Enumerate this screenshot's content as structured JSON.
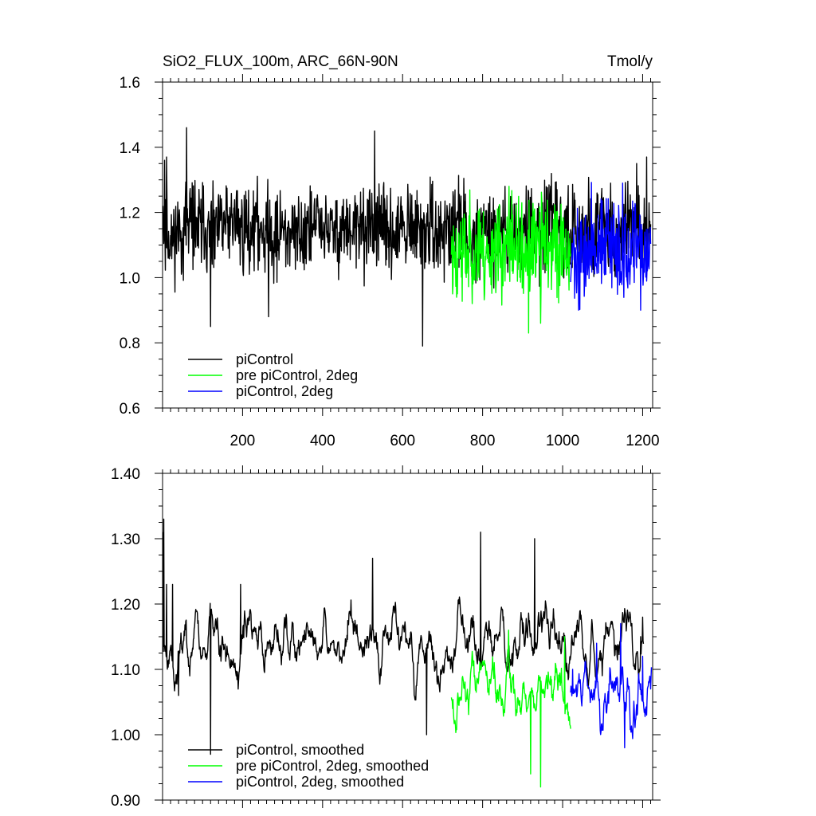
{
  "chart_data": [
    {
      "type": "line",
      "title": "SiO2_FLUX_100m, ARC_66N-90N",
      "units": "Tmol/y",
      "xlabel": "",
      "ylabel": "",
      "xlim": [
        0,
        1225
      ],
      "ylim": [
        0.6,
        1.6
      ],
      "x_ticks": [
        200,
        400,
        600,
        800,
        1000,
        1200
      ],
      "x_tick_labels": [
        "200",
        "400",
        "600",
        "800",
        "1000",
        "1200"
      ],
      "y_ticks": [
        0.6,
        0.8,
        1.0,
        1.2,
        1.4,
        1.6
      ],
      "y_tick_labels": [
        "0.6",
        "0.8",
        "1.0",
        "1.2",
        "1.4",
        "1.6"
      ],
      "legend_position": "bottom-left",
      "series": [
        {
          "name": "piControl",
          "color": "#000000",
          "x_start": 1,
          "x_end": 1220,
          "mean": 1.145,
          "amplitude": 0.075,
          "seed": 11,
          "anchors": [
            [
              1,
              1.22
            ],
            [
              5,
              1.36
            ],
            [
              10,
              1.37
            ],
            [
              60,
              1.46
            ],
            [
              120,
              0.85
            ],
            [
              265,
              0.88
            ],
            [
              530,
              1.45
            ],
            [
              650,
              0.79
            ],
            [
              1120,
              1.29
            ],
            [
              1185,
              1.35
            ],
            [
              1210,
              1.37
            ]
          ]
        },
        {
          "name": "pre piControl, 2deg",
          "color": "#00ff00",
          "x_start": 722,
          "x_end": 1020,
          "mean": 1.085,
          "amplitude": 0.085,
          "seed": 23,
          "anchors": [
            [
              725,
              0.95
            ],
            [
              915,
              0.83
            ],
            [
              945,
              0.86
            ],
            [
              866,
              1.28
            ]
          ]
        },
        {
          "name": "piControl, 2deg",
          "color": "#0000ff",
          "x_start": 1020,
          "x_end": 1220,
          "mean": 1.085,
          "amplitude": 0.08,
          "seed": 37,
          "anchors": [
            [
              1040,
              0.9
            ],
            [
              1150,
              1.29
            ],
            [
              1195,
              0.9
            ]
          ]
        }
      ]
    },
    {
      "type": "line",
      "title": "",
      "xlabel": "",
      "ylabel": "",
      "xlim": [
        0,
        1225
      ],
      "ylim": [
        0.9,
        1.4
      ],
      "x_ticks": [
        200,
        400,
        600,
        800,
        1000,
        1200
      ],
      "y_ticks": [
        0.9,
        1.0,
        1.1,
        1.2,
        1.3,
        1.4
      ],
      "y_tick_labels": [
        "0.90",
        "1.00",
        "1.10",
        "1.20",
        "1.30",
        "1.40"
      ],
      "legend_position": "bottom-left",
      "series": [
        {
          "name": "piControl, smoothed",
          "color": "#000000",
          "x_start": 1,
          "x_end": 1202,
          "mean": 1.14,
          "amplitude": 0.04,
          "seed": 5,
          "anchors": [
            [
              1,
              1.31
            ],
            [
              3,
              1.33
            ],
            [
              10,
              1.23
            ],
            [
              25,
              1.23
            ],
            [
              40,
              1.06
            ],
            [
              120,
              0.97
            ],
            [
              195,
              1.23
            ],
            [
              525,
              1.27
            ],
            [
              660,
              1.0
            ],
            [
              795,
              1.31
            ],
            [
              930,
              1.3
            ],
            [
              1195,
              1.15
            ],
            [
              1200,
              1.18
            ]
          ]
        },
        {
          "name": "pre piControl, 2deg, smoothed",
          "color": "#00ff00",
          "x_start": 722,
          "x_end": 1020,
          "mean": 1.07,
          "amplitude": 0.04,
          "seed": 17,
          "anchors": [
            [
              725,
              1.04
            ],
            [
              920,
              0.94
            ],
            [
              945,
              0.92
            ],
            [
              865,
              1.16
            ],
            [
              1005,
              1.15
            ]
          ]
        },
        {
          "name": "piControl, 2deg, smoothed",
          "color": "#0000ff",
          "x_start": 1020,
          "x_end": 1222,
          "mean": 1.06,
          "amplitude": 0.04,
          "seed": 29,
          "anchors": [
            [
              1025,
              1.1
            ],
            [
              1085,
              1.14
            ],
            [
              1145,
              1.17
            ],
            [
              1155,
              0.98
            ],
            [
              1200,
              1.12
            ],
            [
              1210,
              1.03
            ],
            [
              1220,
              1.07
            ]
          ]
        }
      ]
    }
  ]
}
